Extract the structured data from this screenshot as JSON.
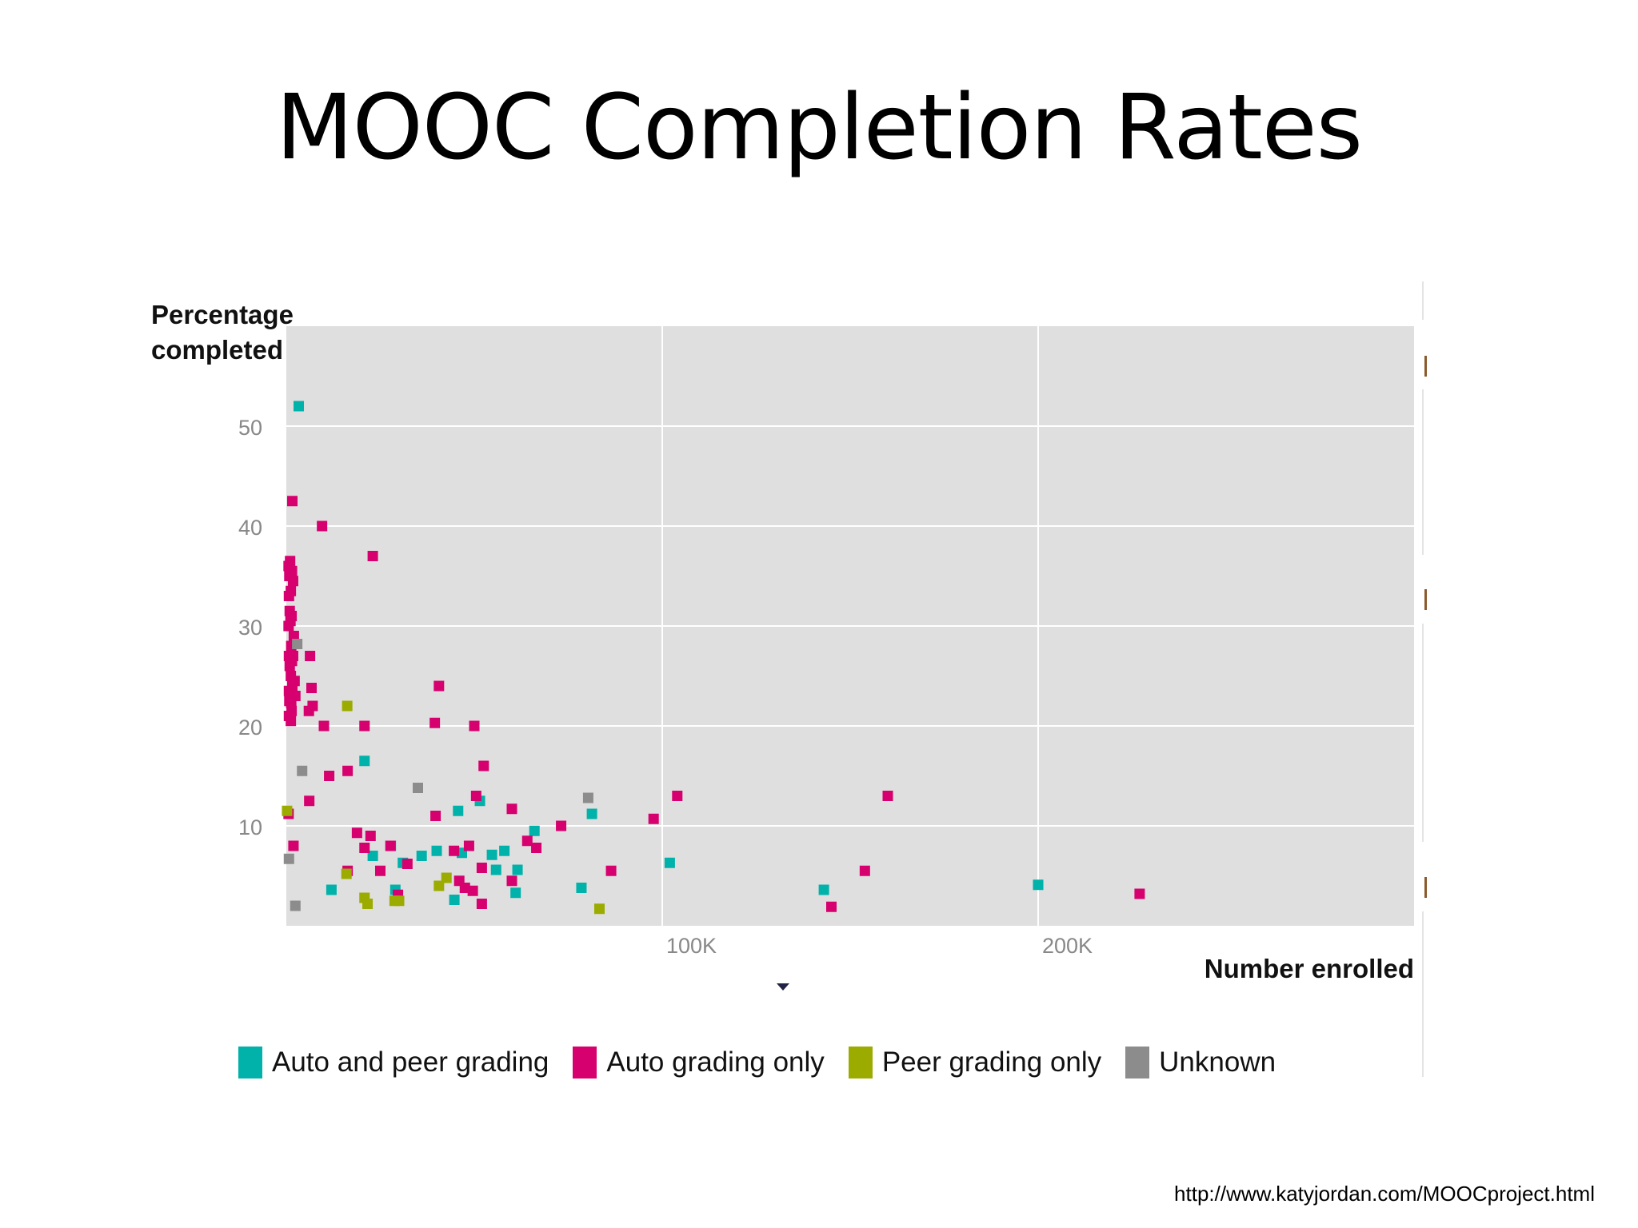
{
  "slide": {
    "title": "MOOC Completion Rates",
    "source_url": "http://www.katyjordan.com/MOOCproject.html"
  },
  "chart_data": {
    "type": "scatter",
    "title": "",
    "xlabel": "Number enrolled",
    "ylabel_lines": [
      "Percentage",
      "completed"
    ],
    "xlim": [
      0,
      300000
    ],
    "ylim": [
      0,
      60
    ],
    "xticks": [
      100000,
      200000
    ],
    "xtick_labels": [
      "100K",
      "200K"
    ],
    "yticks": [
      10,
      20,
      30,
      40,
      50
    ],
    "ytick_labels": [
      "10",
      "20",
      "30",
      "40",
      "50"
    ],
    "grid": true,
    "legend_position": "bottom",
    "colors": {
      "Auto and peer grading": "#00b2a9",
      "Auto grading only": "#d6006e",
      "Peer grading only": "#9bab00",
      "Unknown": "#8c8c8c",
      "plot_background": "#dfdfdf"
    },
    "series": [
      {
        "name": "Auto and peer grading",
        "color": "#00b2a9",
        "points": [
          [
            3300,
            52
          ],
          [
            20800,
            16.5
          ],
          [
            27800,
            8
          ],
          [
            23000,
            7
          ],
          [
            31000,
            6.3
          ],
          [
            12000,
            3.6
          ],
          [
            29000,
            3.6
          ],
          [
            36000,
            7
          ],
          [
            40000,
            7.5
          ],
          [
            45700,
            11.5
          ],
          [
            46700,
            7.3
          ],
          [
            44700,
            2.6
          ],
          [
            51500,
            12.5
          ],
          [
            54700,
            7.1
          ],
          [
            55800,
            5.6
          ],
          [
            58000,
            7.5
          ],
          [
            61000,
            3.3
          ],
          [
            61500,
            5.6
          ],
          [
            66000,
            9.5
          ],
          [
            78500,
            3.8
          ],
          [
            81300,
            11.2
          ],
          [
            102000,
            6.3
          ],
          [
            143000,
            3.6
          ],
          [
            200000,
            4.1
          ]
        ]
      },
      {
        "name": "Auto grading only",
        "color": "#d6006e",
        "points": [
          [
            1600,
            42.5
          ],
          [
            9500,
            40
          ],
          [
            23000,
            37
          ],
          [
            600,
            36
          ],
          [
            1000,
            36.5
          ],
          [
            1500,
            35.5
          ],
          [
            800,
            35
          ],
          [
            1800,
            34.5
          ],
          [
            700,
            33
          ],
          [
            1200,
            33.5
          ],
          [
            900,
            31.5
          ],
          [
            1400,
            31
          ],
          [
            600,
            30
          ],
          [
            1100,
            30.5
          ],
          [
            2000,
            29
          ],
          [
            1300,
            28
          ],
          [
            700,
            27
          ],
          [
            1800,
            27
          ],
          [
            6300,
            27
          ],
          [
            900,
            26
          ],
          [
            1500,
            26.5
          ],
          [
            1200,
            25
          ],
          [
            2200,
            24.5
          ],
          [
            700,
            23.5
          ],
          [
            1600,
            24
          ],
          [
            6700,
            23.8
          ],
          [
            40600,
            24
          ],
          [
            800,
            22.5
          ],
          [
            2400,
            23
          ],
          [
            1300,
            22.3
          ],
          [
            6000,
            21.5
          ],
          [
            7000,
            22
          ],
          [
            700,
            21
          ],
          [
            1400,
            21.5
          ],
          [
            1200,
            20.5
          ],
          [
            10000,
            20
          ],
          [
            20800,
            20
          ],
          [
            39500,
            20.3
          ],
          [
            50000,
            20
          ],
          [
            52500,
            16
          ],
          [
            16300,
            15.5
          ],
          [
            11400,
            15
          ],
          [
            50500,
            13
          ],
          [
            6100,
            12.5
          ],
          [
            600,
            11.2
          ],
          [
            104000,
            13
          ],
          [
            160000,
            13
          ],
          [
            60000,
            11.7
          ],
          [
            39700,
            11
          ],
          [
            18800,
            9.3
          ],
          [
            73100,
            10
          ],
          [
            97700,
            10.7
          ],
          [
            1900,
            8
          ],
          [
            20800,
            7.8
          ],
          [
            22400,
            9
          ],
          [
            27700,
            8
          ],
          [
            48600,
            8
          ],
          [
            64100,
            8.5
          ],
          [
            66500,
            7.8
          ],
          [
            44600,
            7.5
          ],
          [
            32200,
            6.2
          ],
          [
            16300,
            5.5
          ],
          [
            25000,
            5.5
          ],
          [
            52000,
            5.8
          ],
          [
            86400,
            5.5
          ],
          [
            153900,
            5.5
          ],
          [
            46000,
            4.5
          ],
          [
            60000,
            4.5
          ],
          [
            47500,
            3.8
          ],
          [
            49600,
            3.5
          ],
          [
            29700,
            3.1
          ],
          [
            52000,
            2.2
          ],
          [
            145000,
            1.9
          ],
          [
            227000,
            3.2
          ]
        ]
      },
      {
        "name": "Peer grading only",
        "color": "#9bab00",
        "points": [
          [
            200,
            11.5
          ],
          [
            16200,
            22
          ],
          [
            16000,
            5.2
          ],
          [
            40600,
            4
          ],
          [
            42600,
            4.8
          ],
          [
            20800,
            2.8
          ],
          [
            21600,
            2.2
          ],
          [
            28800,
            2.5
          ],
          [
            30000,
            2.5
          ],
          [
            83300,
            1.7
          ]
        ]
      },
      {
        "name": "Unknown",
        "color": "#8c8c8c",
        "points": [
          [
            2900,
            28.2
          ],
          [
            4200,
            15.5
          ],
          [
            35000,
            13.8
          ],
          [
            80300,
            12.8
          ],
          [
            700,
            6.7
          ],
          [
            2400,
            2
          ]
        ]
      }
    ]
  }
}
